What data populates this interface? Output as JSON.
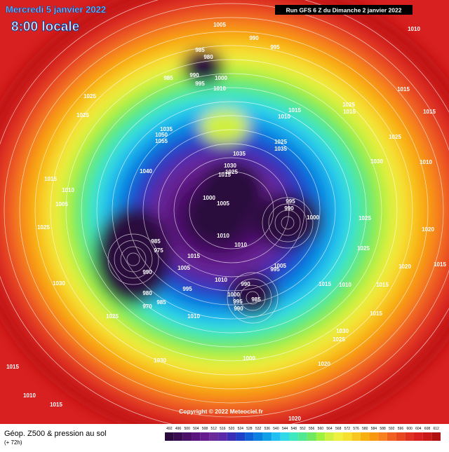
{
  "header": {
    "date": "Mercredi 5 janvier 2022",
    "time": "8:00 locale",
    "run": "Run GFS 6 Z du Dimanche 2 janvier 2022"
  },
  "footer": {
    "product": "Géop. Z500 & pression au sol",
    "lead": "(+ 72h)",
    "copyright": "Copyright © 2022 Meteociel.fr"
  },
  "scale": {
    "ticks": [
      492,
      496,
      500,
      504,
      508,
      512,
      516,
      520,
      524,
      528,
      532,
      536,
      540,
      544,
      548,
      552,
      556,
      560,
      564,
      568,
      572,
      576,
      580,
      584,
      588,
      592,
      596,
      600,
      604,
      608,
      612
    ],
    "colors": [
      "#2b0a3d",
      "#3a0d52",
      "#4a1068",
      "#5a1480",
      "#661c8e",
      "#6b2a9a",
      "#5a2aa8",
      "#3b2fb8",
      "#2040c8",
      "#1060d8",
      "#0a80e0",
      "#10a0e8",
      "#20c0f0",
      "#30d8e8",
      "#40e8c0",
      "#50e890",
      "#70e860",
      "#a0f040",
      "#d0f040",
      "#f0f040",
      "#f8e030",
      "#f8c820",
      "#f8b010",
      "#f89810",
      "#f88020",
      "#f06020",
      "#e84820",
      "#e03020",
      "#d82020",
      "#c81818",
      "#b01010"
    ]
  },
  "isobar_labels": [
    1005,
    990,
    995,
    1010,
    985,
    980,
    985,
    990,
    1000,
    995,
    1010,
    1015,
    1025,
    1025,
    1015,
    1010,
    1025,
    1015,
    1015,
    1035,
    1050,
    1055,
    1025,
    1035,
    1025,
    1035,
    1040,
    1030,
    1025,
    1015,
    1030,
    1010,
    1015,
    1010,
    1005,
    1025,
    1000,
    1005,
    995,
    990,
    1000,
    1025,
    1020,
    1010,
    1010,
    1025,
    985,
    975,
    1015,
    1005,
    990,
    995,
    1005,
    1020,
    1015,
    1030,
    990,
    1010,
    1015,
    1010,
    1015,
    995,
    1000,
    995,
    990,
    985,
    980,
    970,
    985,
    1025,
    1010,
    1015,
    1030,
    1025,
    1000,
    1030,
    1020,
    1015,
    1010,
    1015,
    1020
  ]
}
